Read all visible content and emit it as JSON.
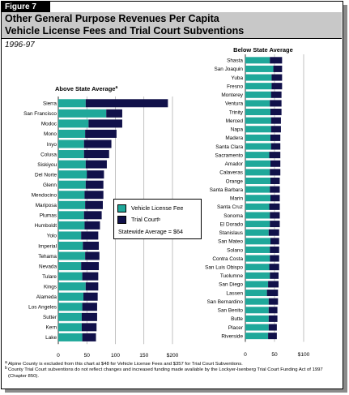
{
  "figure_label": "Figure 7",
  "title_line1": "Other General Purpose Revenues Per Capita",
  "title_line2": "Vehicle License Fees and Trial Court Subventions",
  "subtitle": "1996-97",
  "colors": {
    "vehicle_license_fee": "#1fa89a",
    "trial_court": "#11114a",
    "title_band": "#c8c8c8"
  },
  "legend": {
    "vlf_label": "Vehicle License Fee",
    "trial_label": "Trial Court",
    "trial_mark": "b",
    "average_text": "Statewide Average = $64"
  },
  "footnotes": [
    {
      "mark": "a",
      "text": "Alpine County is excluded from this chart at $48 for Vehicle License Fees and $357 for Trial Court Subventions."
    },
    {
      "mark": "b",
      "text": "County Trial Court subventions do not reflect changes and increased funding made available by the Lockyer-Isenberg Trial Court Funding Act of 1997 (Chapter 850)."
    }
  ],
  "chart_data": [
    {
      "type": "bar",
      "orientation": "horizontal",
      "stacked": true,
      "title": "Above State Average",
      "title_mark": "a",
      "categories": [
        "Sierra",
        "San Francisco",
        "Modoc",
        "Mono",
        "Inyo",
        "Colusa",
        "Siskiyou",
        "Del Norte",
        "Glenn",
        "Mendocino",
        "Mariposa",
        "Plumas",
        "Humboldt",
        "Yolo",
        "Imperial",
        "Tehama",
        "Nevada",
        "Tulare",
        "Kings",
        "Alameda",
        "Los Angeles",
        "Sutter",
        "Kern",
        "Lake"
      ],
      "series": [
        {
          "name": "Vehicle License Fee",
          "values": [
            48,
            84,
            53,
            47,
            45,
            45,
            48,
            50,
            48,
            46,
            47,
            45,
            46,
            40,
            43,
            47,
            40,
            42,
            48,
            44,
            42,
            41,
            41,
            42
          ]
        },
        {
          "name": "Trial Court",
          "values": [
            144,
            28,
            59,
            55,
            48,
            44,
            37,
            30,
            31,
            33,
            31,
            31,
            27,
            30,
            28,
            25,
            31,
            28,
            22,
            25,
            26,
            27,
            26,
            24
          ]
        }
      ],
      "xlim": [
        0,
        200
      ],
      "xticks": [
        "0",
        "50",
        "100",
        "150",
        "$200"
      ],
      "legend_position": "center-right"
    },
    {
      "type": "bar",
      "orientation": "horizontal",
      "stacked": true,
      "title": "Below State Average",
      "categories": [
        "Shasta",
        "San Joaquin",
        "Yuba",
        "Fresno",
        "Monterey",
        "Ventura",
        "Trinity",
        "Merced",
        "Napa",
        "Madera",
        "Santa Clara",
        "Sacramento",
        "Amador",
        "Calaveras",
        "Orange",
        "Santa Barbara",
        "Marin",
        "Santa Cruz",
        "Sonoma",
        "El Dorado",
        "Stanislaus",
        "San Mateo",
        "Solano",
        "Contra Costa",
        "San Luis Obispo",
        "Tuolumne",
        "San Diego",
        "Lassen",
        "San Bernardino",
        "San Benito",
        "Butte",
        "Placer",
        "Riverside"
      ],
      "series": [
        {
          "name": "Vehicle License Fee",
          "values": [
            42,
            48,
            45,
            45,
            44,
            42,
            43,
            44,
            44,
            43,
            44,
            41,
            43,
            42,
            43,
            42,
            43,
            41,
            42,
            42,
            40,
            43,
            42,
            42,
            41,
            42,
            39,
            37,
            40,
            40,
            40,
            40,
            39
          ]
        },
        {
          "name": "Trial Court",
          "values": [
            21,
            15,
            18,
            18,
            18,
            20,
            19,
            17,
            17,
            17,
            16,
            19,
            17,
            18,
            16,
            17,
            16,
            18,
            17,
            17,
            18,
            15,
            16,
            16,
            17,
            15,
            18,
            19,
            16,
            15,
            15,
            14,
            15
          ]
        }
      ],
      "xlim": [
        0,
        100
      ],
      "xticks": [
        "0",
        "50",
        "$100"
      ]
    }
  ]
}
